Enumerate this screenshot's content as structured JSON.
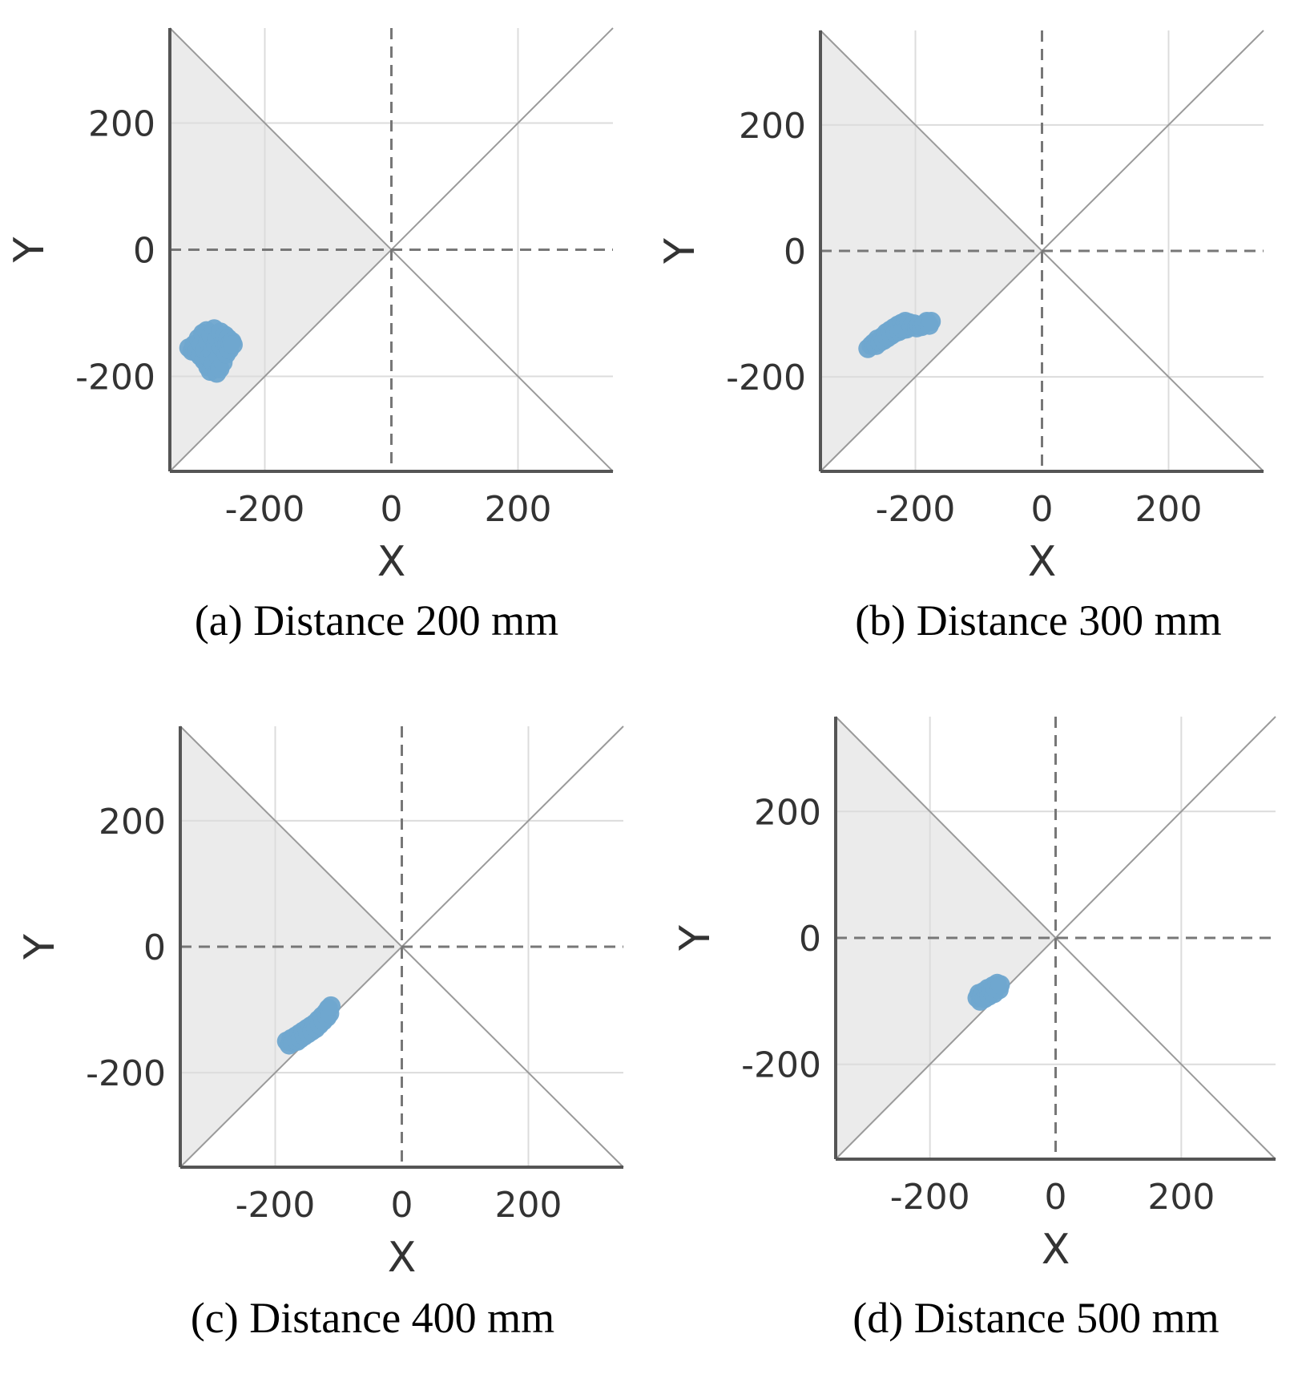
{
  "chart_data": [
    {
      "type": "scatter",
      "caption": "(a) Distance 200 mm",
      "xlabel": "X",
      "ylabel": "Y",
      "xlim": [
        -350,
        350
      ],
      "ylim": [
        -350,
        350
      ],
      "xticks": [
        "-200",
        "0",
        "200"
      ],
      "yticks": [
        "200",
        "0",
        "-200"
      ],
      "xtick_values": [
        -200,
        0,
        200
      ],
      "ytick_values": [
        200,
        0,
        -200
      ],
      "grid": true,
      "shaded_region": "left triangle between diagonals",
      "point_color": "#6fa6cf",
      "points": [
        [
          -320,
          -155
        ],
        [
          -315,
          -160
        ],
        [
          -312,
          -150
        ],
        [
          -308,
          -162
        ],
        [
          -305,
          -140
        ],
        [
          -302,
          -168
        ],
        [
          -300,
          -150
        ],
        [
          -298,
          -132
        ],
        [
          -296,
          -175
        ],
        [
          -295,
          -158
        ],
        [
          -292,
          -128
        ],
        [
          -290,
          -185
        ],
        [
          -290,
          -145
        ],
        [
          -288,
          -170
        ],
        [
          -286,
          -192
        ],
        [
          -285,
          -135
        ],
        [
          -283,
          -160
        ],
        [
          -281,
          -180
        ],
        [
          -280,
          -125
        ],
        [
          -278,
          -150
        ],
        [
          -276,
          -195
        ],
        [
          -275,
          -140
        ],
        [
          -273,
          -170
        ],
        [
          -271,
          -188
        ],
        [
          -270,
          -130
        ],
        [
          -268,
          -155
        ],
        [
          -266,
          -178
        ],
        [
          -265,
          -145
        ],
        [
          -263,
          -135
        ],
        [
          -261,
          -165
        ],
        [
          -260,
          -150
        ],
        [
          -258,
          -140
        ],
        [
          -256,
          -158
        ],
        [
          -255,
          -148
        ],
        [
          -252,
          -145
        ],
        [
          -250,
          -150
        ]
      ]
    },
    {
      "type": "scatter",
      "caption": "(b) Distance 300 mm",
      "xlabel": "X",
      "ylabel": "Y",
      "xlim": [
        -350,
        350
      ],
      "ylim": [
        -350,
        350
      ],
      "xticks": [
        "-200",
        "0",
        "200"
      ],
      "yticks": [
        "200",
        "0",
        "-200"
      ],
      "xtick_values": [
        -200,
        0,
        200
      ],
      "ytick_values": [
        200,
        0,
        -200
      ],
      "grid": true,
      "shaded_region": "left triangle between diagonals",
      "point_color": "#6fa6cf",
      "points": [
        [
          -275,
          -155
        ],
        [
          -270,
          -150
        ],
        [
          -266,
          -146
        ],
        [
          -262,
          -150
        ],
        [
          -260,
          -140
        ],
        [
          -256,
          -145
        ],
        [
          -252,
          -136
        ],
        [
          -250,
          -142
        ],
        [
          -246,
          -130
        ],
        [
          -244,
          -138
        ],
        [
          -240,
          -126
        ],
        [
          -238,
          -134
        ],
        [
          -234,
          -122
        ],
        [
          -232,
          -130
        ],
        [
          -228,
          -118
        ],
        [
          -226,
          -128
        ],
        [
          -222,
          -115
        ],
        [
          -220,
          -125
        ],
        [
          -216,
          -112
        ],
        [
          -214,
          -124
        ],
        [
          -210,
          -114
        ],
        [
          -206,
          -120
        ],
        [
          -202,
          -116
        ],
        [
          -198,
          -122
        ],
        [
          -194,
          -118
        ],
        [
          -190,
          -120
        ],
        [
          -186,
          -116
        ],
        [
          -182,
          -112
        ],
        [
          -178,
          -118
        ],
        [
          -175,
          -112
        ]
      ]
    },
    {
      "type": "scatter",
      "caption": "(c) Distance 400 mm",
      "xlabel": "X",
      "ylabel": "Y",
      "xlim": [
        -350,
        350
      ],
      "ylim": [
        -350,
        350
      ],
      "xticks": [
        "-200",
        "0",
        "200"
      ],
      "yticks": [
        "200",
        "0",
        "-200"
      ],
      "xtick_values": [
        -200,
        0,
        200
      ],
      "ytick_values": [
        200,
        0,
        -200
      ],
      "grid": true,
      "shaded_region": "left triangle between diagonals",
      "point_color": "#6fa6cf",
      "points": [
        [
          -182,
          -150
        ],
        [
          -178,
          -156
        ],
        [
          -175,
          -146
        ],
        [
          -172,
          -152
        ],
        [
          -168,
          -142
        ],
        [
          -165,
          -150
        ],
        [
          -162,
          -138
        ],
        [
          -160,
          -146
        ],
        [
          -156,
          -134
        ],
        [
          -154,
          -142
        ],
        [
          -150,
          -130
        ],
        [
          -148,
          -138
        ],
        [
          -144,
          -126
        ],
        [
          -142,
          -134
        ],
        [
          -138,
          -122
        ],
        [
          -136,
          -130
        ],
        [
          -132,
          -116
        ],
        [
          -130,
          -124
        ],
        [
          -126,
          -110
        ],
        [
          -124,
          -118
        ],
        [
          -120,
          -104
        ],
        [
          -118,
          -112
        ],
        [
          -116,
          -98
        ],
        [
          -114,
          -106
        ],
        [
          -112,
          -94
        ]
      ]
    },
    {
      "type": "scatter",
      "caption": "(d) Distance 500 mm",
      "xlabel": "X",
      "ylabel": "Y",
      "xlim": [
        -350,
        350
      ],
      "ylim": [
        -350,
        350
      ],
      "xticks": [
        "-200",
        "0",
        "200"
      ],
      "yticks": [
        "200",
        "0",
        "-200"
      ],
      "xtick_values": [
        -200,
        0,
        200
      ],
      "ytick_values": [
        200,
        0,
        -200
      ],
      "grid": true,
      "shaded_region": "left triangle between diagonals",
      "point_color": "#6fa6cf",
      "points": [
        [
          -125,
          -95
        ],
        [
          -122,
          -88
        ],
        [
          -120,
          -100
        ],
        [
          -118,
          -92
        ],
        [
          -115,
          -85
        ],
        [
          -113,
          -96
        ],
        [
          -110,
          -88
        ],
        [
          -108,
          -80
        ],
        [
          -106,
          -92
        ],
        [
          -103,
          -84
        ],
        [
          -100,
          -76
        ],
        [
          -98,
          -88
        ],
        [
          -96,
          -80
        ],
        [
          -93,
          -72
        ],
        [
          -90,
          -82
        ],
        [
          -88,
          -74
        ]
      ]
    }
  ]
}
